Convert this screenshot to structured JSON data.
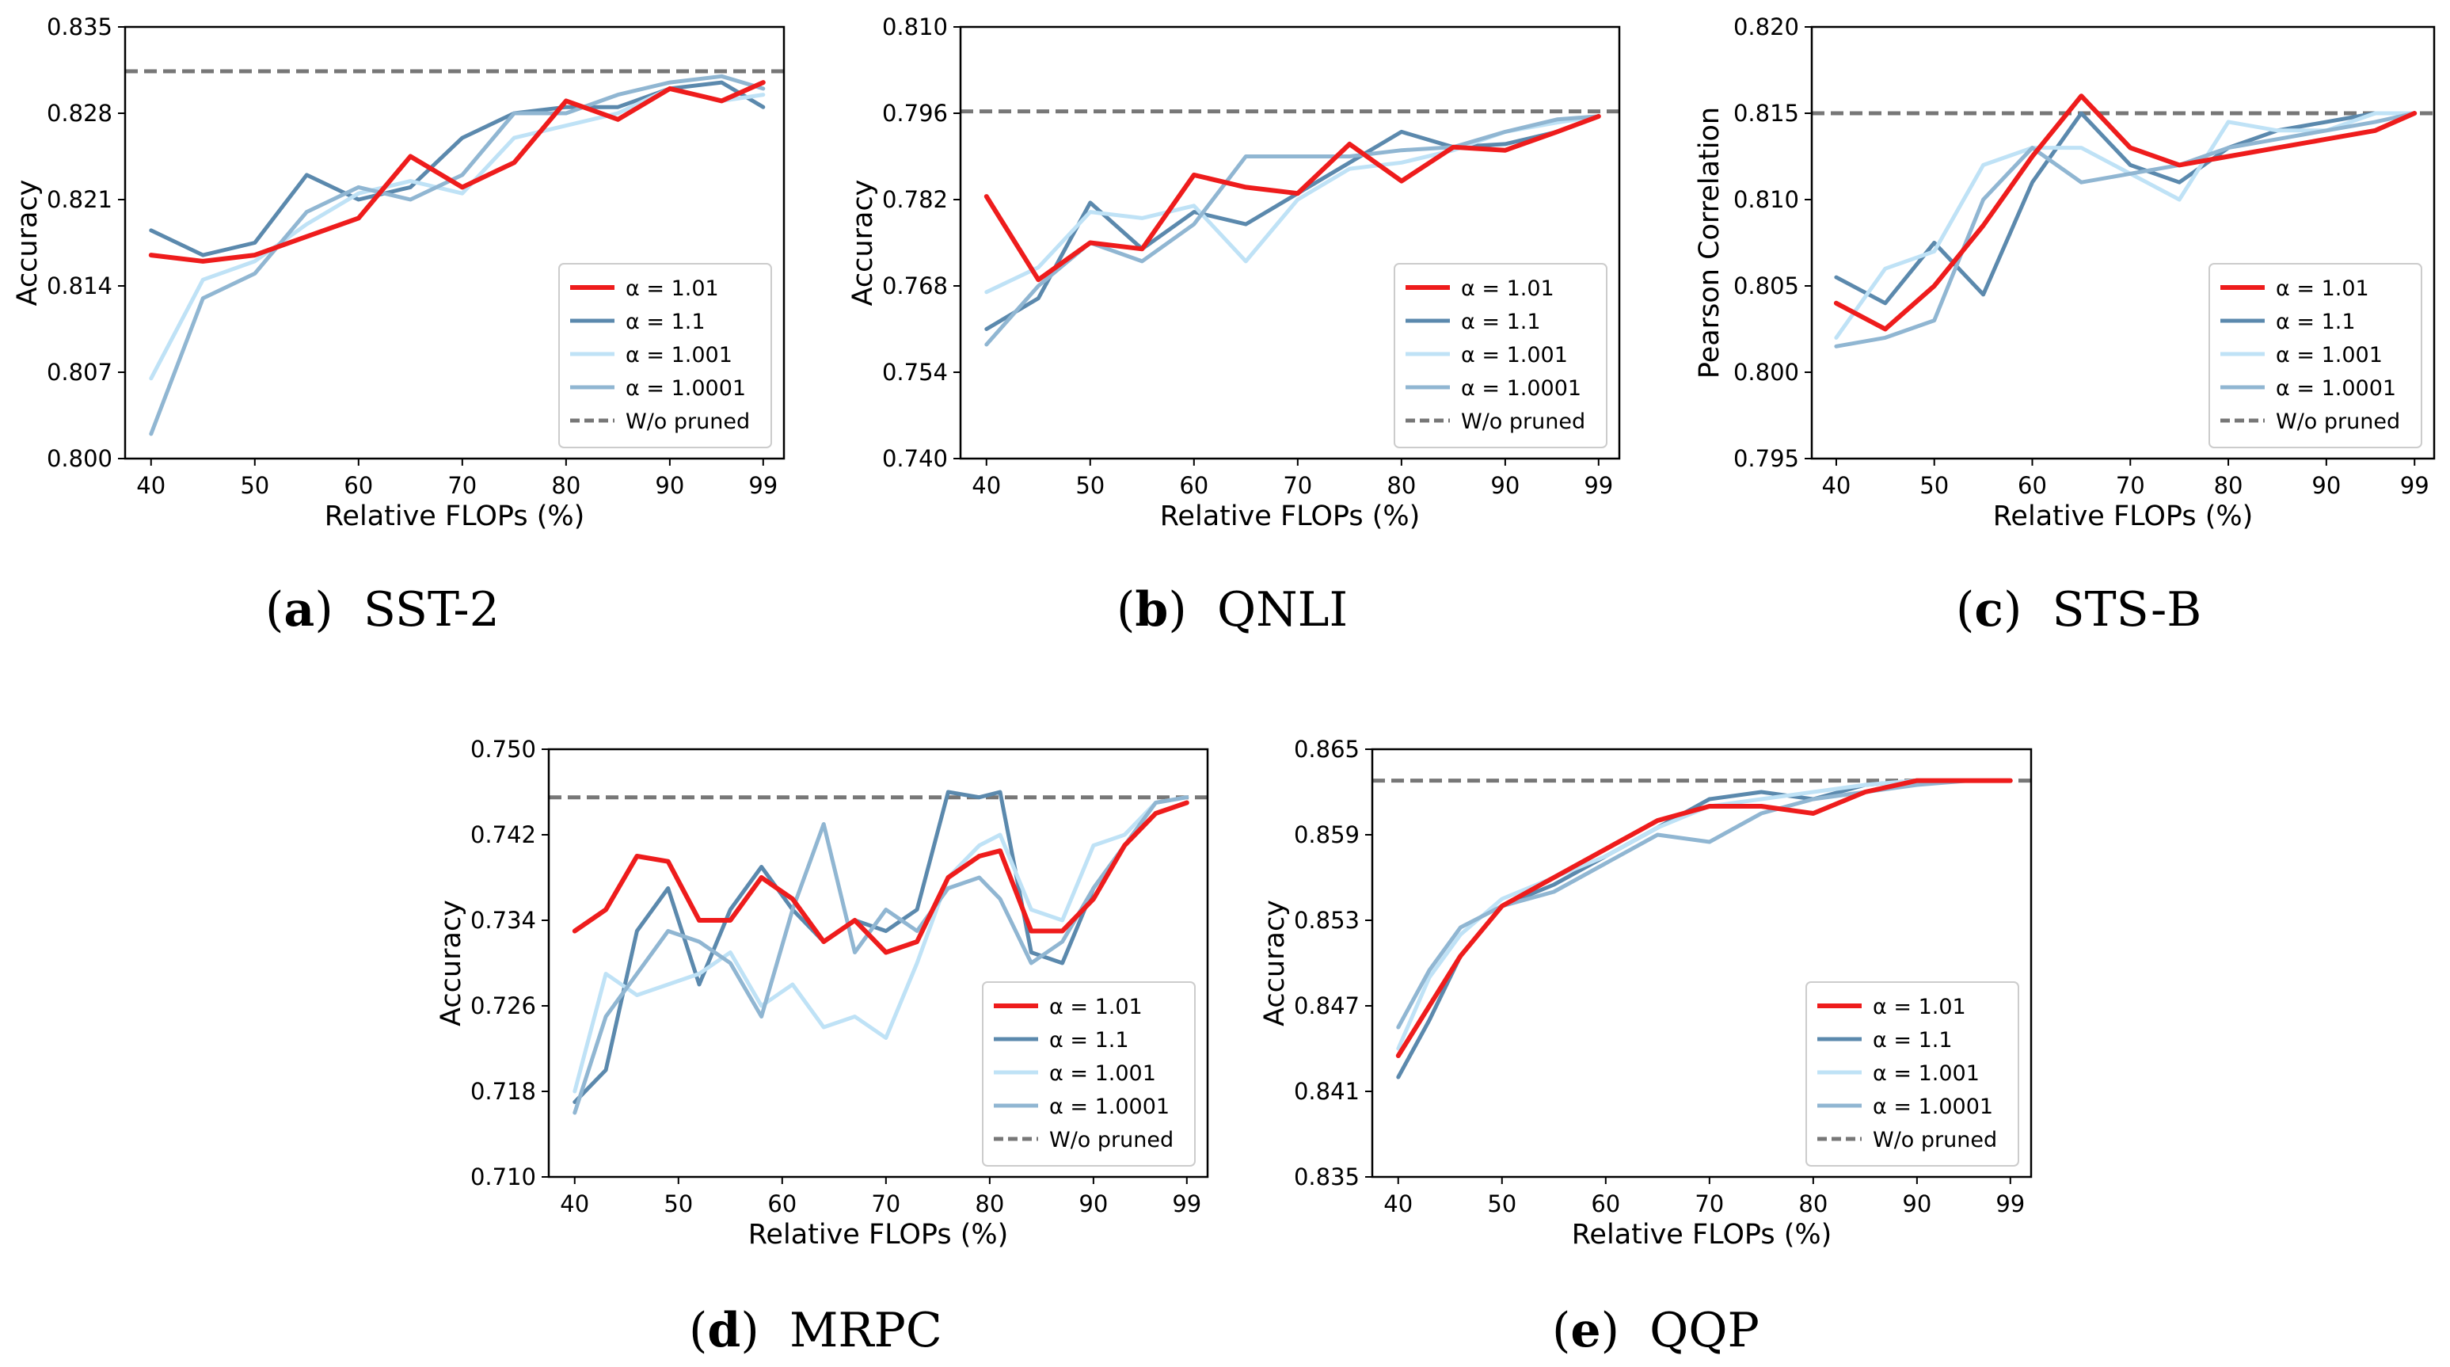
{
  "chart_data": [
    {
      "id": "a",
      "type": "line",
      "caption_letter": "a",
      "caption_text": "SST-2",
      "xlabel": "Relative FLOPs (%)",
      "ylabel": "Accuracy",
      "xlim": [
        37.5,
        101
      ],
      "ylim": [
        0.8,
        0.835
      ],
      "xticks": [
        40,
        50,
        60,
        70,
        80,
        90,
        99
      ],
      "yticks": [
        0.8,
        0.807,
        0.814,
        0.821,
        0.828,
        0.835
      ],
      "ytick_labels": [
        "0.800",
        "0.807",
        "0.814",
        "0.821",
        "0.828",
        "0.835"
      ],
      "baseline": 0.8314,
      "baseline_label": "W/o pruned",
      "legend_position": "lower-right",
      "x": [
        40,
        45,
        50,
        55,
        60,
        65,
        70,
        75,
        80,
        85,
        90,
        95,
        99
      ],
      "series": [
        {
          "name": "α = 1.1",
          "color": "#5b89ad",
          "width": 5,
          "values": [
            0.8185,
            0.8165,
            0.8175,
            0.823,
            0.821,
            0.822,
            0.826,
            0.828,
            0.8285,
            0.8285,
            0.83,
            0.8305,
            0.8285
          ]
        },
        {
          "name": "α = 1.001",
          "color": "#bfe2f6",
          "width": 5,
          "values": [
            0.8065,
            0.8145,
            0.816,
            0.819,
            0.8215,
            0.8225,
            0.8215,
            0.826,
            0.827,
            0.828,
            0.83,
            0.829,
            0.8295
          ]
        },
        {
          "name": "α = 1.0001",
          "color": "#90b6d2",
          "width": 5,
          "values": [
            0.802,
            0.813,
            0.815,
            0.82,
            0.822,
            0.821,
            0.823,
            0.828,
            0.828,
            0.8295,
            0.8305,
            0.831,
            0.83
          ]
        },
        {
          "name": "α = 1.01",
          "color": "#ee1c1c",
          "width": 6,
          "values": [
            0.8165,
            0.816,
            0.8165,
            0.818,
            0.8195,
            0.8245,
            0.822,
            0.824,
            0.829,
            0.8275,
            0.83,
            0.829,
            0.8305
          ]
        }
      ]
    },
    {
      "id": "b",
      "type": "line",
      "caption_letter": "b",
      "caption_text": "QNLI",
      "xlabel": "Relative FLOPs (%)",
      "ylabel": "Accuracy",
      "xlim": [
        37.5,
        101
      ],
      "ylim": [
        0.74,
        0.81
      ],
      "xticks": [
        40,
        50,
        60,
        70,
        80,
        90,
        99
      ],
      "yticks": [
        0.74,
        0.754,
        0.768,
        0.782,
        0.796,
        0.81
      ],
      "ytick_labels": [
        "0.740",
        "0.754",
        "0.768",
        "0.782",
        "0.796",
        "0.810"
      ],
      "baseline": 0.7963,
      "baseline_label": "W/o pruned",
      "legend_position": "lower-right",
      "x": [
        40,
        45,
        50,
        55,
        60,
        65,
        70,
        75,
        80,
        85,
        90,
        95,
        99
      ],
      "series": [
        {
          "name": "α = 1.1",
          "color": "#5b89ad",
          "width": 5,
          "values": [
            0.761,
            0.766,
            0.7815,
            0.774,
            0.78,
            0.778,
            0.783,
            0.788,
            0.793,
            0.7905,
            0.791,
            0.793,
            0.7955
          ]
        },
        {
          "name": "α = 1.001",
          "color": "#bfe2f6",
          "width": 5,
          "values": [
            0.767,
            0.771,
            0.78,
            0.779,
            0.781,
            0.772,
            0.782,
            0.787,
            0.788,
            0.79,
            0.793,
            0.7945,
            0.7955
          ]
        },
        {
          "name": "α = 1.0001",
          "color": "#90b6d2",
          "width": 5,
          "values": [
            0.7585,
            0.768,
            0.775,
            0.772,
            0.778,
            0.789,
            0.789,
            0.789,
            0.79,
            0.7905,
            0.793,
            0.795,
            0.7955
          ]
        },
        {
          "name": "α = 1.01",
          "color": "#ee1c1c",
          "width": 6,
          "values": [
            0.7825,
            0.769,
            0.775,
            0.774,
            0.786,
            0.784,
            0.783,
            0.791,
            0.785,
            0.7905,
            0.79,
            0.793,
            0.7955
          ]
        }
      ]
    },
    {
      "id": "c",
      "type": "line",
      "caption_letter": "c",
      "caption_text": "STS-B",
      "xlabel": "Relative FLOPs (%)",
      "ylabel": "Pearson Correlation",
      "xlim": [
        37.5,
        101
      ],
      "ylim": [
        0.795,
        0.82
      ],
      "xticks": [
        40,
        50,
        60,
        70,
        80,
        90,
        99
      ],
      "yticks": [
        0.795,
        0.8,
        0.805,
        0.81,
        0.815,
        0.82
      ],
      "ytick_labels": [
        "0.795",
        "0.800",
        "0.805",
        "0.810",
        "0.815",
        "0.820"
      ],
      "baseline": 0.815,
      "baseline_label": "W/o pruned",
      "legend_position": "lower-right",
      "x": [
        40,
        45,
        50,
        55,
        60,
        65,
        70,
        75,
        80,
        85,
        90,
        95,
        99
      ],
      "series": [
        {
          "name": "α = 1.1",
          "color": "#5b89ad",
          "width": 5,
          "values": [
            0.8055,
            0.804,
            0.8075,
            0.8045,
            0.811,
            0.815,
            0.812,
            0.811,
            0.813,
            0.814,
            0.8145,
            0.815,
            0.815
          ]
        },
        {
          "name": "α = 1.001",
          "color": "#bfe2f6",
          "width": 5,
          "values": [
            0.802,
            0.806,
            0.807,
            0.812,
            0.813,
            0.813,
            0.8115,
            0.81,
            0.8145,
            0.814,
            0.814,
            0.815,
            0.815
          ]
        },
        {
          "name": "α = 1.0001",
          "color": "#90b6d2",
          "width": 5,
          "values": [
            0.8015,
            0.802,
            0.803,
            0.81,
            0.813,
            0.811,
            0.8115,
            0.812,
            0.813,
            0.8135,
            0.814,
            0.8145,
            0.815
          ]
        },
        {
          "name": "α = 1.01",
          "color": "#ee1c1c",
          "width": 6,
          "values": [
            0.804,
            0.8025,
            0.805,
            0.8085,
            0.8125,
            0.816,
            0.813,
            0.812,
            0.8125,
            0.813,
            0.8135,
            0.814,
            0.815
          ]
        }
      ]
    },
    {
      "id": "d",
      "type": "line",
      "caption_letter": "d",
      "caption_text": "MRPC",
      "xlabel": "Relative FLOPs (%)",
      "ylabel": "Accuracy",
      "xlim": [
        37.5,
        101
      ],
      "ylim": [
        0.71,
        0.75
      ],
      "xticks": [
        40,
        50,
        60,
        70,
        80,
        90,
        99
      ],
      "yticks": [
        0.71,
        0.718,
        0.726,
        0.734,
        0.742,
        0.75
      ],
      "ytick_labels": [
        "0.710",
        "0.718",
        "0.726",
        "0.734",
        "0.742",
        "0.750"
      ],
      "baseline": 0.7455,
      "baseline_label": "W/o pruned",
      "legend_position": "lower-right",
      "x": [
        40,
        43,
        46,
        49,
        52,
        55,
        58,
        61,
        64,
        67,
        70,
        73,
        76,
        79,
        81,
        84,
        87,
        90,
        93,
        96,
        99
      ],
      "series": [
        {
          "name": "α = 1.1",
          "color": "#5b89ad",
          "width": 5,
          "values": [
            0.717,
            0.72,
            0.733,
            0.737,
            0.728,
            0.735,
            0.739,
            0.735,
            0.732,
            0.734,
            0.733,
            0.735,
            0.746,
            0.7455,
            0.746,
            0.731,
            0.73,
            0.737,
            0.741,
            0.744,
            0.745
          ]
        },
        {
          "name": "α = 1.001",
          "color": "#bfe2f6",
          "width": 5,
          "values": [
            0.718,
            0.729,
            0.727,
            0.728,
            0.729,
            0.731,
            0.726,
            0.728,
            0.724,
            0.725,
            0.723,
            0.73,
            0.738,
            0.741,
            0.742,
            0.735,
            0.734,
            0.741,
            0.742,
            0.745,
            0.7455
          ]
        },
        {
          "name": "α = 1.0001",
          "color": "#90b6d2",
          "width": 5,
          "values": [
            0.716,
            0.725,
            0.729,
            0.733,
            0.732,
            0.73,
            0.725,
            0.735,
            0.743,
            0.731,
            0.735,
            0.733,
            0.737,
            0.738,
            0.736,
            0.73,
            0.732,
            0.737,
            0.741,
            0.745,
            0.7455
          ]
        },
        {
          "name": "α = 1.01",
          "color": "#ee1c1c",
          "width": 6,
          "values": [
            0.733,
            0.735,
            0.74,
            0.7395,
            0.734,
            0.734,
            0.738,
            0.736,
            0.732,
            0.734,
            0.731,
            0.732,
            0.738,
            0.74,
            0.7405,
            0.733,
            0.733,
            0.736,
            0.741,
            0.744,
            0.745
          ]
        }
      ]
    },
    {
      "id": "e",
      "type": "line",
      "caption_letter": "e",
      "caption_text": "QQP",
      "xlabel": "Relative FLOPs (%)",
      "ylabel": "Accuracy",
      "xlim": [
        37.5,
        101
      ],
      "ylim": [
        0.835,
        0.865
      ],
      "xticks": [
        40,
        50,
        60,
        70,
        80,
        90,
        99
      ],
      "yticks": [
        0.835,
        0.841,
        0.847,
        0.853,
        0.859,
        0.865
      ],
      "ytick_labels": [
        "0.835",
        "0.841",
        "0.847",
        "0.853",
        "0.859",
        "0.865"
      ],
      "baseline": 0.8628,
      "baseline_label": "W/o pruned",
      "legend_position": "lower-right",
      "x": [
        40,
        43,
        46,
        50,
        55,
        60,
        65,
        70,
        75,
        80,
        85,
        90,
        95,
        99
      ],
      "series": [
        {
          "name": "α = 1.1",
          "color": "#5b89ad",
          "width": 5,
          "values": [
            0.842,
            0.846,
            0.8505,
            0.854,
            0.8555,
            0.8575,
            0.8595,
            0.8615,
            0.862,
            0.8615,
            0.8625,
            0.8628,
            0.8628,
            0.8628
          ]
        },
        {
          "name": "α = 1.001",
          "color": "#bfe2f6",
          "width": 5,
          "values": [
            0.844,
            0.849,
            0.852,
            0.8545,
            0.856,
            0.8575,
            0.8595,
            0.861,
            0.8615,
            0.862,
            0.8625,
            0.8628,
            0.8628,
            0.8628
          ]
        },
        {
          "name": "α = 1.0001",
          "color": "#90b6d2",
          "width": 5,
          "values": [
            0.8455,
            0.8495,
            0.8525,
            0.854,
            0.855,
            0.857,
            0.859,
            0.8585,
            0.8605,
            0.8615,
            0.862,
            0.8625,
            0.8628,
            0.8628
          ]
        },
        {
          "name": "α = 1.01",
          "color": "#ee1c1c",
          "width": 6,
          "values": [
            0.8435,
            0.847,
            0.8505,
            0.854,
            0.856,
            0.858,
            0.86,
            0.861,
            0.861,
            0.8605,
            0.862,
            0.8628,
            0.8628,
            0.8628
          ]
        }
      ]
    }
  ]
}
